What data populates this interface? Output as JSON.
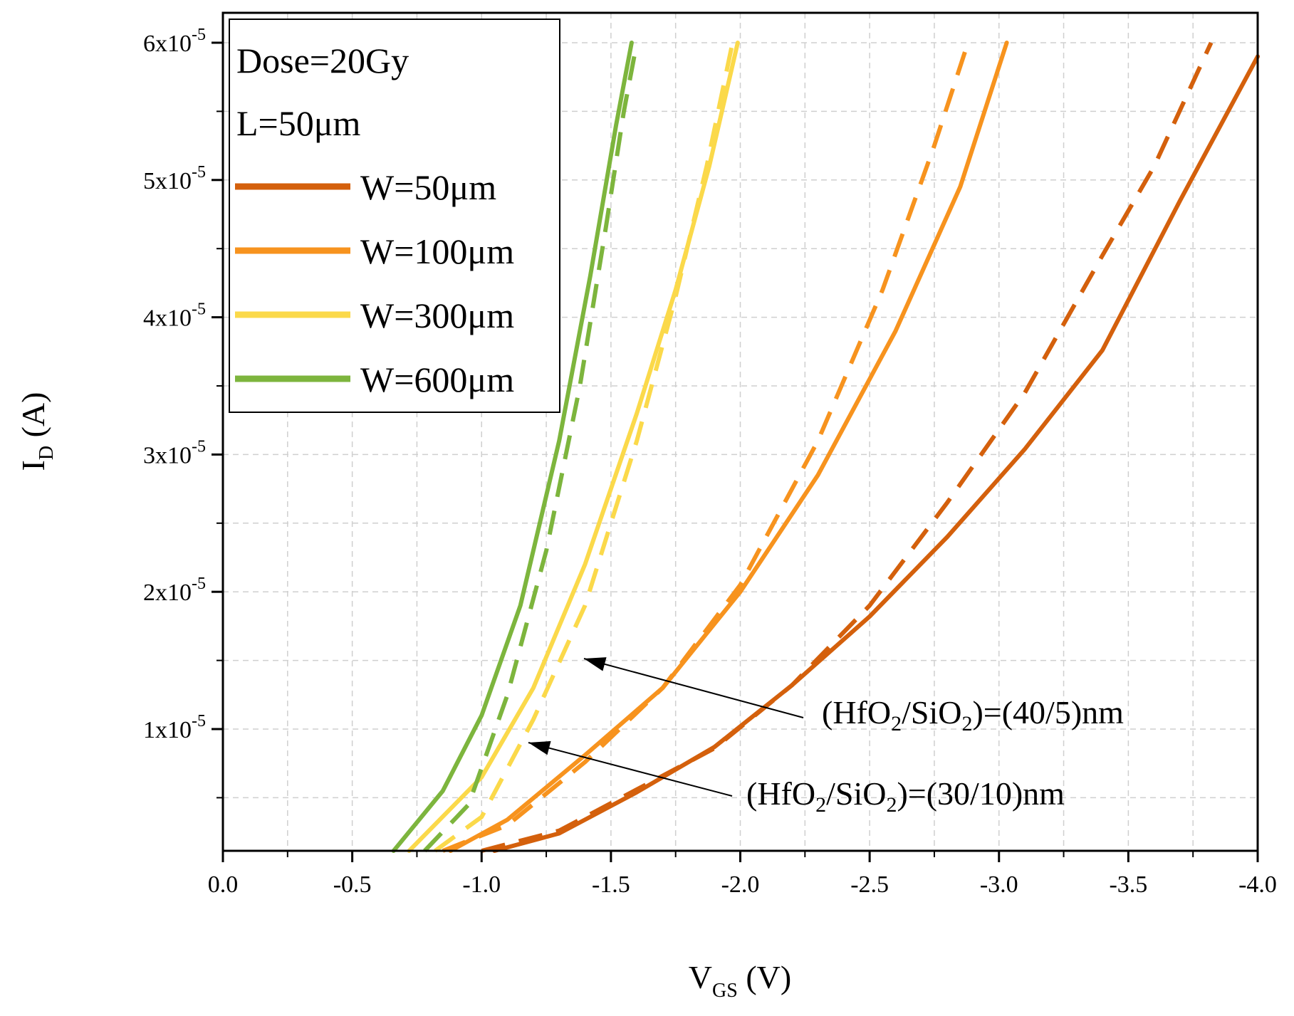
{
  "chart_data": {
    "type": "line",
    "title": "",
    "xlabel": {
      "main": "V",
      "sub": "GS",
      "unit": " (V)"
    },
    "ylabel": {
      "main": "I",
      "sub": "D",
      "unit": " (A)"
    },
    "xlim": [
      0.0,
      -4.0
    ],
    "ylim": [
      1e-06,
      6.2e-05
    ],
    "x_ticks": [
      {
        "value": 0.0,
        "label": "0.0"
      },
      {
        "value": -0.5,
        "label": "-0.5"
      },
      {
        "value": -1.0,
        "label": "-1.0"
      },
      {
        "value": -1.5,
        "label": "-1.5"
      },
      {
        "value": -2.0,
        "label": "-2.0"
      },
      {
        "value": -2.5,
        "label": "-2.5"
      },
      {
        "value": -3.0,
        "label": "-3.0"
      },
      {
        "value": -3.5,
        "label": "-3.5"
      },
      {
        "value": -4.0,
        "label": "-4.0"
      }
    ],
    "y_ticks": [
      {
        "value": 1e-05,
        "base": "1x10",
        "exp": "-5"
      },
      {
        "value": 2e-05,
        "base": "2x10",
        "exp": "-5"
      },
      {
        "value": 3e-05,
        "base": "3x10",
        "exp": "-5"
      },
      {
        "value": 4e-05,
        "base": "4x10",
        "exp": "-5"
      },
      {
        "value": 5e-05,
        "base": "5x10",
        "exp": "-5"
      },
      {
        "value": 6e-05,
        "base": "6x10",
        "exp": "-5"
      }
    ],
    "grid": true,
    "legend": {
      "placement": "top-left",
      "header": [
        "Dose=20Gy",
        "L=50μm"
      ],
      "entries": [
        {
          "label": "W=50μm",
          "color": "#d4600c"
        },
        {
          "label": "W=100μm",
          "color": "#f7931e"
        },
        {
          "label": "W=300μm",
          "color": "#fbd94a"
        },
        {
          "label": "W=600μm",
          "color": "#7db53d"
        }
      ]
    },
    "line_styles": [
      {
        "style": "solid",
        "stack_nm": "40/5"
      },
      {
        "style": "dashed",
        "stack_nm": "30/10"
      }
    ],
    "series": [
      {
        "width": "W=50μm",
        "style": "solid",
        "color": "#d4600c",
        "x": [
          -1.05,
          -1.3,
          -1.6,
          -1.9,
          -2.2,
          -2.5,
          -2.8,
          -3.1,
          -3.4,
          -3.7,
          -4.0
        ],
        "y": [
          1e-06,
          2.4e-06,
          5.4e-06,
          8.7e-06,
          1.32e-05,
          1.82e-05,
          2.4e-05,
          3.04e-05,
          3.76e-05,
          4.85e-05,
          5.9e-05
        ]
      },
      {
        "width": "W=50μm",
        "style": "dashed",
        "color": "#d4600c",
        "x": [
          -1.0,
          -1.3,
          -1.6,
          -1.9,
          -2.2,
          -2.5,
          -2.8,
          -3.1,
          -3.4,
          -3.6,
          -3.82
        ],
        "y": [
          1e-06,
          2.6e-06,
          5.6e-06,
          8.6e-06,
          1.32e-05,
          1.9e-05,
          2.65e-05,
          3.45e-05,
          4.45e-05,
          5.1e-05,
          6e-05
        ]
      },
      {
        "width": "W=100μm",
        "style": "solid",
        "color": "#f7931e",
        "x": [
          -0.88,
          -1.1,
          -1.4,
          -1.7,
          -2.0,
          -2.3,
          -2.6,
          -2.85,
          -3.03
        ],
        "y": [
          1e-06,
          3.4e-06,
          8.1e-06,
          1.3e-05,
          2e-05,
          2.85e-05,
          3.9e-05,
          4.95e-05,
          6e-05
        ]
      },
      {
        "width": "W=100μm",
        "style": "dashed",
        "color": "#f7931e",
        "x": [
          -0.85,
          -1.1,
          -1.4,
          -1.7,
          -2.0,
          -2.3,
          -2.55,
          -2.75,
          -2.88
        ],
        "y": [
          1e-06,
          3e-06,
          7.6e-06,
          1.3e-05,
          2.05e-05,
          3.1e-05,
          4.2e-05,
          5.25e-05,
          6e-05
        ]
      },
      {
        "width": "W=300μm",
        "style": "solid",
        "color": "#fbd94a",
        "x": [
          -0.72,
          -1.0,
          -1.2,
          -1.4,
          -1.6,
          -1.75,
          -1.88,
          -1.99
        ],
        "y": [
          1e-06,
          6.5e-06,
          1.3e-05,
          2.2e-05,
          3.3e-05,
          4.2e-05,
          5.1e-05,
          6e-05
        ]
      },
      {
        "width": "W=300μm",
        "style": "dashed",
        "color": "#fbd94a",
        "x": [
          -0.82,
          -1.0,
          -1.2,
          -1.4,
          -1.6,
          -1.75,
          -1.87,
          -1.97
        ],
        "y": [
          1e-06,
          3.6e-06,
          1.07e-05,
          1.9e-05,
          3.1e-05,
          4.15e-05,
          5.1e-05,
          6e-05
        ]
      },
      {
        "width": "W=600μm",
        "style": "solid",
        "color": "#7db53d",
        "x": [
          -0.66,
          -0.85,
          -1.0,
          -1.15,
          -1.3,
          -1.42,
          -1.52,
          -1.58
        ],
        "y": [
          1e-06,
          5.5e-06,
          1.1e-05,
          1.9e-05,
          3.1e-05,
          4.3e-05,
          5.4e-05,
          6e-05
        ]
      },
      {
        "width": "W=600μm",
        "style": "dashed",
        "color": "#7db53d",
        "x": [
          -0.78,
          -0.95,
          -1.1,
          -1.25,
          -1.38,
          -1.48,
          -1.55,
          -1.6
        ],
        "y": [
          1e-06,
          4.5e-06,
          1.25e-05,
          2.3e-05,
          3.5e-05,
          4.65e-05,
          5.5e-05,
          6e-05
        ]
      }
    ],
    "annotations": [
      {
        "parts": [
          "(HfO",
          "2",
          "/SiO",
          "2",
          ")=(40/5)nm"
        ],
        "arrow_to": {
          "x": -1.38,
          "y": 1.5e-05
        }
      },
      {
        "parts": [
          "(HfO",
          "2",
          "/SiO",
          "2",
          ")=(30/10)nm"
        ],
        "arrow_to": {
          "x": -1.13,
          "y": 1.05e-05
        }
      }
    ]
  }
}
